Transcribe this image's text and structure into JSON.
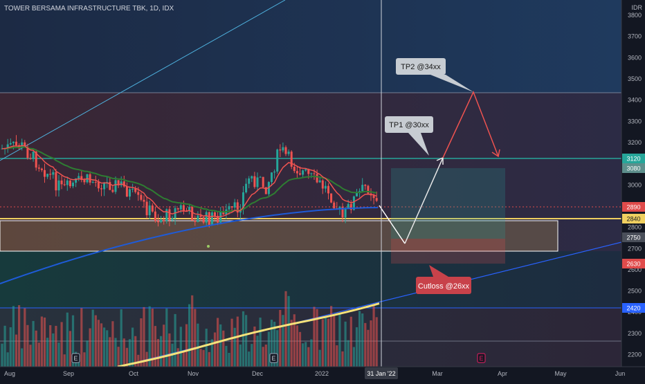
{
  "header": {
    "title": "TOWER BERSAMA INFRASTRUCTURE TBK, 1D, IDX"
  },
  "axis": {
    "currency": "IDR",
    "y_ticks": [
      3800,
      3700,
      3600,
      3500,
      3400,
      3300,
      3200,
      3000,
      2900,
      2800,
      2700,
      2600,
      2500,
      2400,
      2300,
      2200
    ],
    "x_ticks": [
      "Aug",
      "Sep",
      "Oct",
      "Nov",
      "Dec",
      "2022",
      "Mar",
      "Apr",
      "May",
      "Jun"
    ],
    "cursor_date": "31 Jan '22"
  },
  "price_badges": [
    {
      "value": "3120",
      "color": "#26a69a"
    },
    {
      "value": "3080",
      "color": "#5d8f8c"
    },
    {
      "value": "2890",
      "color": "#e04b4b"
    },
    {
      "value": "2840",
      "color": "#f0d060"
    },
    {
      "value": "2750",
      "color": "#4a4f5a"
    },
    {
      "value": "2630",
      "color": "#e04b4b"
    },
    {
      "value": "2420",
      "color": "#2962ff"
    }
  ],
  "annotations": {
    "tp2": "TP2 @34xx",
    "tp1": "TP1 @30xx",
    "cutloss": "Cutloss @26xx"
  },
  "events": [
    "E",
    "E",
    "E"
  ],
  "colors": {
    "background": "#131722",
    "up": "#26a69a",
    "down": "#ef5350",
    "ema_fast": "#ef5350",
    "ema_mid": "#2e7d32",
    "ema_slow": "#1e5bd8",
    "volume_ma": "#f5e27a"
  }
}
